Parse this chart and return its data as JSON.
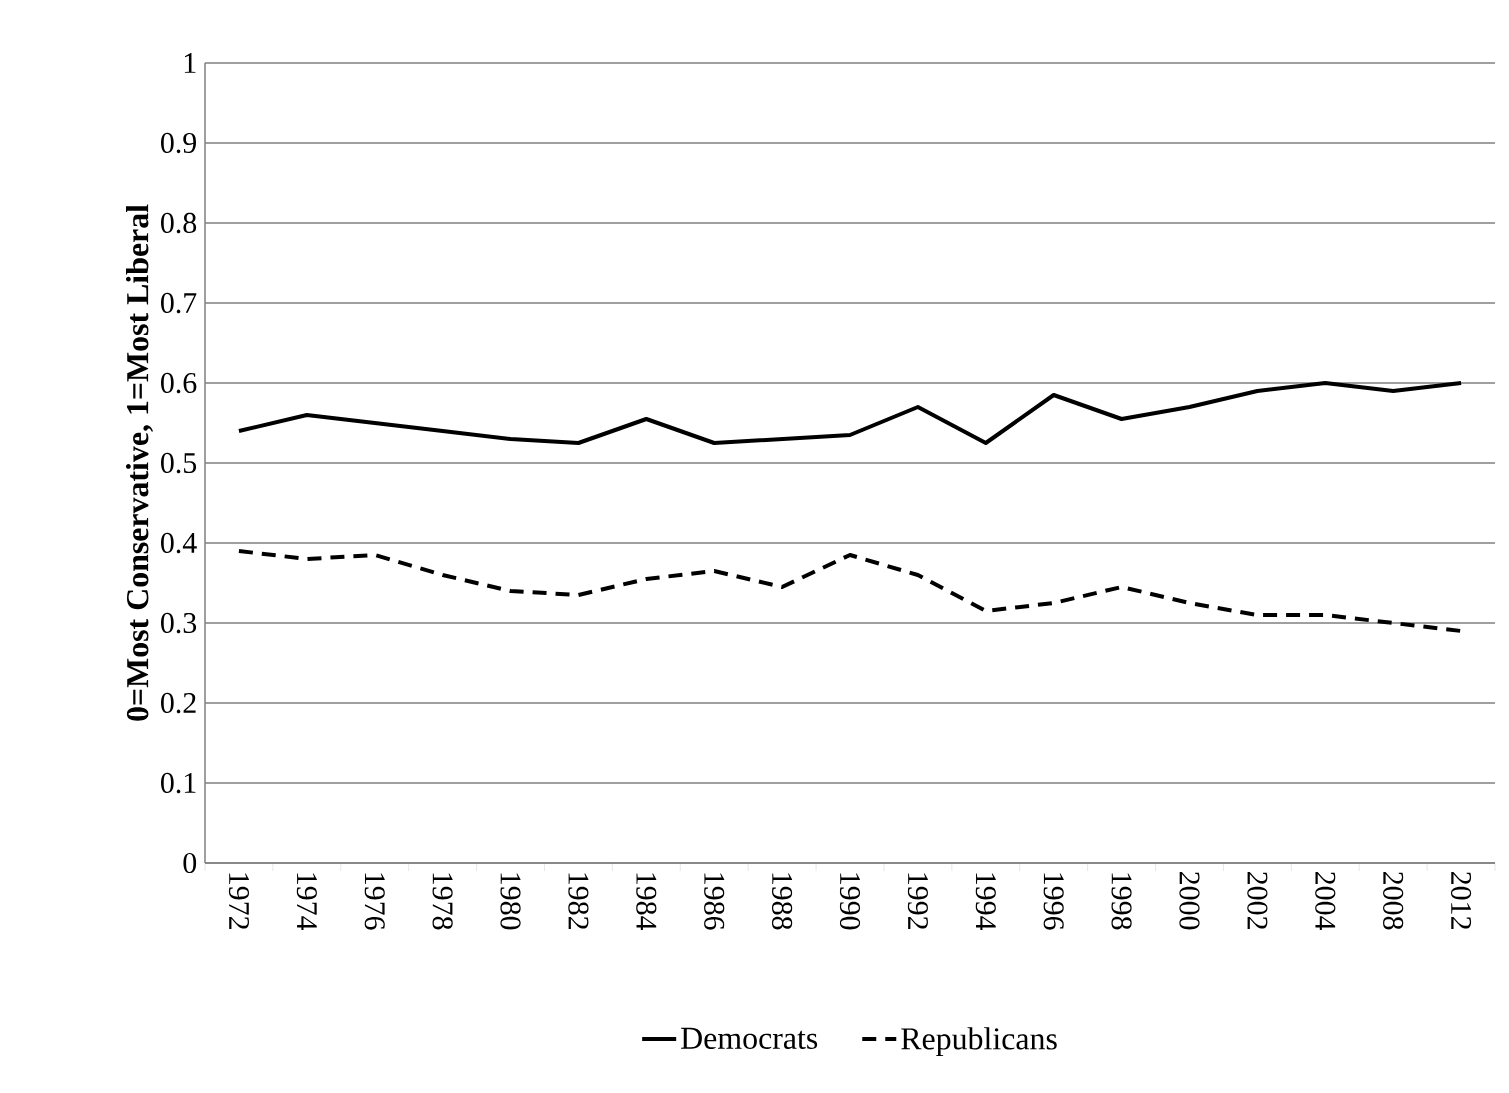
{
  "chart_data": {
    "type": "line",
    "ylabel": "0=Most Conservative, 1=Most Liberal",
    "categories": [
      "1972",
      "1974",
      "1976",
      "1978",
      "1980",
      "1982",
      "1984",
      "1986",
      "1988",
      "1990",
      "1992",
      "1994",
      "1996",
      "1998",
      "2000",
      "2002",
      "2004",
      "2008",
      "2012"
    ],
    "series": [
      {
        "name": "Democrats",
        "color": "#000000",
        "line_style": "solid",
        "values": [
          0.54,
          0.56,
          0.55,
          0.54,
          0.53,
          0.525,
          0.555,
          0.525,
          0.53,
          0.535,
          0.57,
          0.525,
          0.585,
          0.555,
          0.57,
          0.59,
          0.6,
          0.59,
          0.6
        ]
      },
      {
        "name": "Republicans",
        "color": "#000000",
        "line_style": "dashed",
        "values": [
          0.39,
          0.38,
          0.385,
          0.36,
          0.34,
          0.335,
          0.355,
          0.365,
          0.345,
          0.385,
          0.36,
          0.315,
          0.325,
          0.345,
          0.325,
          0.31,
          0.31,
          0.3,
          0.29
        ]
      }
    ],
    "ylim": [
      0,
      1
    ],
    "yticks": [
      0,
      0.1,
      0.2,
      0.3,
      0.4,
      0.5,
      0.6,
      0.7,
      0.8,
      0.9,
      1
    ],
    "grid": "y",
    "legend": "bottom"
  }
}
